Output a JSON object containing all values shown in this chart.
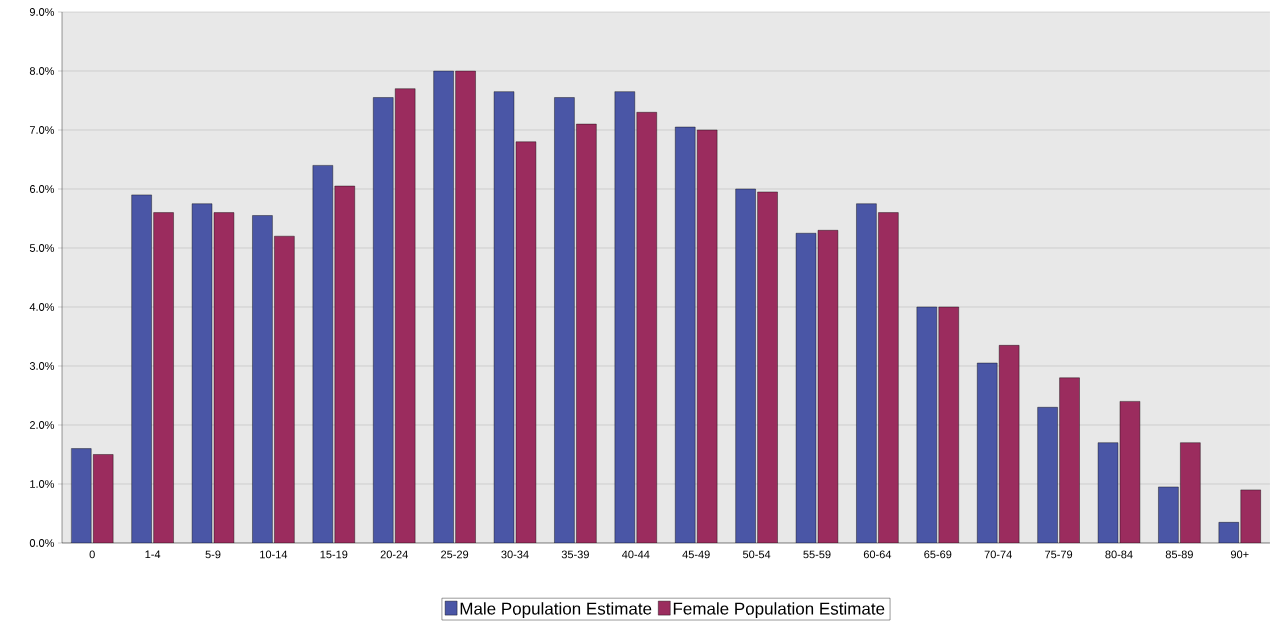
{
  "chart_data": {
    "type": "bar",
    "categories": [
      "0",
      "1-4",
      "5-9",
      "10-14",
      "15-19",
      "20-24",
      "25-29",
      "30-34",
      "35-39",
      "40-44",
      "45-49",
      "50-54",
      "55-59",
      "60-64",
      "65-69",
      "70-74",
      "75-79",
      "80-84",
      "85-89",
      "90+"
    ],
    "series": [
      {
        "name": "Male Population Estimate",
        "color": "#4a56a6",
        "values": [
          1.6,
          5.9,
          5.75,
          5.55,
          6.4,
          7.55,
          8.0,
          7.65,
          7.55,
          7.65,
          7.05,
          6.0,
          5.25,
          5.75,
          4.0,
          3.05,
          2.3,
          1.7,
          0.95,
          0.35
        ]
      },
      {
        "name": "Female Population Estimate",
        "color": "#9b2c5e",
        "values": [
          1.5,
          5.6,
          5.6,
          5.2,
          6.05,
          7.7,
          8.0,
          6.8,
          7.1,
          7.3,
          7.0,
          5.95,
          5.3,
          5.6,
          4.0,
          3.35,
          2.8,
          2.4,
          1.7,
          0.9
        ]
      }
    ],
    "ylim": [
      0,
      9
    ],
    "yticks": [
      {
        "value": 0,
        "label": "0.0%"
      },
      {
        "value": 1,
        "label": "1.0%"
      },
      {
        "value": 2,
        "label": "2.0%"
      },
      {
        "value": 3,
        "label": "3.0%"
      },
      {
        "value": 4,
        "label": "4.0%"
      },
      {
        "value": 5,
        "label": "5.0%"
      },
      {
        "value": 6,
        "label": "6.0%"
      },
      {
        "value": 7,
        "label": "7.0%"
      },
      {
        "value": 8,
        "label": "8.0%"
      },
      {
        "value": 9,
        "label": "9.0%"
      }
    ],
    "grid": "y",
    "legend": "bottom"
  }
}
